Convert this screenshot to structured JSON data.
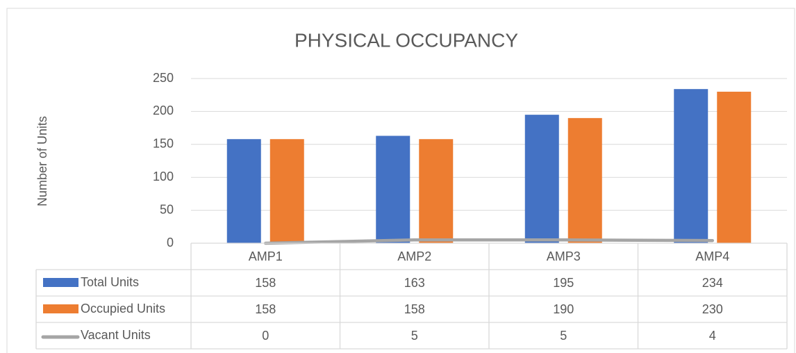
{
  "chart_data": {
    "type": "bar",
    "title": "PHYSICAL OCCUPANCY",
    "y_label": "Number of Units",
    "categories": [
      "AMP1",
      "AMP2",
      "AMP3",
      "AMP4"
    ],
    "series": [
      {
        "name": "Total Units",
        "color": "#4472c4",
        "type": "bar",
        "values": [
          158,
          163,
          195,
          234
        ]
      },
      {
        "name": "Occupied Units",
        "color": "#ed7d31",
        "type": "bar",
        "values": [
          158,
          158,
          190,
          230
        ]
      },
      {
        "name": "Vacant Units",
        "color": "#a5a5a5",
        "type": "line",
        "values": [
          0,
          5,
          5,
          4
        ]
      }
    ],
    "ylim": [
      0,
      250
    ],
    "yticks": [
      0,
      50,
      100,
      150,
      200,
      250
    ],
    "grid": true,
    "data_table": true
  }
}
